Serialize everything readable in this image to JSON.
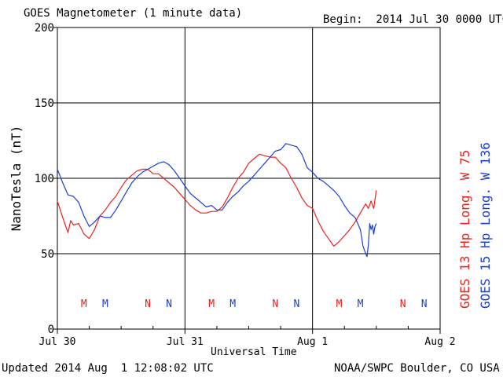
{
  "header": {
    "title": "GOES Magnetometer (1 minute data)",
    "begin": "Begin:  2014 Jul 30 0000 UTC"
  },
  "footer": {
    "updated": "Updated 2014 Aug  1 12:08:02 UTC",
    "credit": "NOAA/SWPC Boulder, CO USA"
  },
  "colors": {
    "goes13": "#e8231c",
    "goes15": "#1b3fd0",
    "grid": "#000000",
    "background": "#ffffff"
  },
  "chart_data": {
    "type": "line",
    "title": "GOES Magnetometer (1 minute data)",
    "xlabel": "Universal Time",
    "ylabel": "NanoTesla (nT)",
    "ylim": [
      0,
      200
    ],
    "yticks": [
      0,
      50,
      100,
      150,
      200
    ],
    "xlim": [
      "2014-07-30 00:00",
      "2014-08-02 00:00"
    ],
    "xticks": [
      {
        "x": "2014-07-30 00:00",
        "label": "Jul 30"
      },
      {
        "x": "2014-07-31 00:00",
        "label": "Jul 31"
      },
      {
        "x": "2014-08-01 00:00",
        "label": "Aug 1"
      },
      {
        "x": "2014-08-02 00:00",
        "label": "Aug 2"
      }
    ],
    "grid": true,
    "legend": "right side, vertical text",
    "series": [
      {
        "name": "GOES 13 Hp  Long. W 75",
        "color": "#e8231c",
        "points": [
          [
            "2014-07-30 00:00",
            85
          ],
          [
            "2014-07-30 01:00",
            74
          ],
          [
            "2014-07-30 01:30",
            69
          ],
          [
            "2014-07-30 02:00",
            64
          ],
          [
            "2014-07-30 02:30",
            72
          ],
          [
            "2014-07-30 03:00",
            69
          ],
          [
            "2014-07-30 04:00",
            70
          ],
          [
            "2014-07-30 05:00",
            63
          ],
          [
            "2014-07-30 06:00",
            60
          ],
          [
            "2014-07-30 07:00",
            66
          ],
          [
            "2014-07-30 08:00",
            75
          ],
          [
            "2014-07-30 09:00",
            79
          ],
          [
            "2014-07-30 10:00",
            84
          ],
          [
            "2014-07-30 11:00",
            88
          ],
          [
            "2014-07-30 12:00",
            94
          ],
          [
            "2014-07-30 13:00",
            99
          ],
          [
            "2014-07-30 14:00",
            102
          ],
          [
            "2014-07-30 15:00",
            105
          ],
          [
            "2014-07-30 16:00",
            106
          ],
          [
            "2014-07-30 17:00",
            106
          ],
          [
            "2014-07-30 18:00",
            103
          ],
          [
            "2014-07-30 19:00",
            103
          ],
          [
            "2014-07-30 20:00",
            100
          ],
          [
            "2014-07-30 21:00",
            97
          ],
          [
            "2014-07-30 22:00",
            94
          ],
          [
            "2014-07-30 23:00",
            90
          ],
          [
            "2014-07-31 00:00",
            86
          ],
          [
            "2014-07-31 01:00",
            82
          ],
          [
            "2014-07-31 02:00",
            79
          ],
          [
            "2014-07-31 03:00",
            77
          ],
          [
            "2014-07-31 04:00",
            77
          ],
          [
            "2014-07-31 05:00",
            78
          ],
          [
            "2014-07-31 06:00",
            78
          ],
          [
            "2014-07-31 07:00",
            81
          ],
          [
            "2014-07-31 08:00",
            87
          ],
          [
            "2014-07-31 09:00",
            94
          ],
          [
            "2014-07-31 10:00",
            100
          ],
          [
            "2014-07-31 11:00",
            104
          ],
          [
            "2014-07-31 12:00",
            110
          ],
          [
            "2014-07-31 13:00",
            113
          ],
          [
            "2014-07-31 14:00",
            116
          ],
          [
            "2014-07-31 15:00",
            115
          ],
          [
            "2014-07-31 16:00",
            114
          ],
          [
            "2014-07-31 17:00",
            114
          ],
          [
            "2014-07-31 18:00",
            110
          ],
          [
            "2014-07-31 19:00",
            107
          ],
          [
            "2014-07-31 20:00",
            100
          ],
          [
            "2014-07-31 21:00",
            94
          ],
          [
            "2014-07-31 22:00",
            87
          ],
          [
            "2014-07-31 23:00",
            82
          ],
          [
            "2014-08-01 00:00",
            80
          ],
          [
            "2014-08-01 01:00",
            72
          ],
          [
            "2014-08-01 02:00",
            65
          ],
          [
            "2014-08-01 03:00",
            60
          ],
          [
            "2014-08-01 04:00",
            55
          ],
          [
            "2014-08-01 05:00",
            58
          ],
          [
            "2014-08-01 06:00",
            62
          ],
          [
            "2014-08-01 07:00",
            66
          ],
          [
            "2014-08-01 08:00",
            71
          ],
          [
            "2014-08-01 09:00",
            77
          ],
          [
            "2014-08-01 10:00",
            83
          ],
          [
            "2014-08-01 10:30",
            80
          ],
          [
            "2014-08-01 11:00",
            85
          ],
          [
            "2014-08-01 11:30",
            80
          ],
          [
            "2014-08-01 11:45",
            86
          ],
          [
            "2014-08-01 12:00",
            92
          ]
        ]
      },
      {
        "name": "GOES 15 Hp  Long. W 136",
        "color": "#1b3fd0",
        "points": [
          [
            "2014-07-30 00:00",
            106
          ],
          [
            "2014-07-30 01:00",
            97
          ],
          [
            "2014-07-30 02:00",
            89
          ],
          [
            "2014-07-30 03:00",
            88
          ],
          [
            "2014-07-30 04:00",
            84
          ],
          [
            "2014-07-30 05:00",
            75
          ],
          [
            "2014-07-30 06:00",
            68
          ],
          [
            "2014-07-30 07:00",
            71
          ],
          [
            "2014-07-30 08:00",
            75
          ],
          [
            "2014-07-30 09:00",
            74
          ],
          [
            "2014-07-30 10:00",
            74
          ],
          [
            "2014-07-30 11:00",
            79
          ],
          [
            "2014-07-30 12:00",
            85
          ],
          [
            "2014-07-30 13:00",
            91
          ],
          [
            "2014-07-30 14:00",
            97
          ],
          [
            "2014-07-30 15:00",
            101
          ],
          [
            "2014-07-30 16:00",
            104
          ],
          [
            "2014-07-30 17:00",
            106
          ],
          [
            "2014-07-30 18:00",
            108
          ],
          [
            "2014-07-30 19:00",
            110
          ],
          [
            "2014-07-30 20:00",
            111
          ],
          [
            "2014-07-30 21:00",
            109
          ],
          [
            "2014-07-30 22:00",
            105
          ],
          [
            "2014-07-30 23:00",
            100
          ],
          [
            "2014-07-31 00:00",
            95
          ],
          [
            "2014-07-31 01:00",
            90
          ],
          [
            "2014-07-31 02:00",
            87
          ],
          [
            "2014-07-31 03:00",
            84
          ],
          [
            "2014-07-31 04:00",
            81
          ],
          [
            "2014-07-31 05:00",
            82
          ],
          [
            "2014-07-31 06:00",
            79
          ],
          [
            "2014-07-31 07:00",
            79
          ],
          [
            "2014-07-31 08:00",
            84
          ],
          [
            "2014-07-31 09:00",
            88
          ],
          [
            "2014-07-31 10:00",
            91
          ],
          [
            "2014-07-31 11:00",
            95
          ],
          [
            "2014-07-31 12:00",
            98
          ],
          [
            "2014-07-31 13:00",
            102
          ],
          [
            "2014-07-31 14:00",
            106
          ],
          [
            "2014-07-31 15:00",
            110
          ],
          [
            "2014-07-31 16:00",
            114
          ],
          [
            "2014-07-31 17:00",
            118
          ],
          [
            "2014-07-31 18:00",
            119
          ],
          [
            "2014-07-31 19:00",
            123
          ],
          [
            "2014-07-31 20:00",
            122
          ],
          [
            "2014-07-31 21:00",
            121
          ],
          [
            "2014-07-31 22:00",
            116
          ],
          [
            "2014-07-31 23:00",
            107
          ],
          [
            "2014-08-01 00:00",
            104
          ],
          [
            "2014-08-01 01:00",
            100
          ],
          [
            "2014-08-01 02:00",
            98
          ],
          [
            "2014-08-01 03:00",
            95
          ],
          [
            "2014-08-01 04:00",
            92
          ],
          [
            "2014-08-01 05:00",
            88
          ],
          [
            "2014-08-01 06:00",
            82
          ],
          [
            "2014-08-01 07:00",
            77
          ],
          [
            "2014-08-01 08:00",
            74
          ],
          [
            "2014-08-01 08:30",
            70
          ],
          [
            "2014-08-01 09:00",
            66
          ],
          [
            "2014-08-01 09:30",
            55
          ],
          [
            "2014-08-01 10:00",
            50
          ],
          [
            "2014-08-01 10:15",
            48
          ],
          [
            "2014-08-01 10:30",
            56
          ],
          [
            "2014-08-01 10:45",
            70
          ],
          [
            "2014-08-01 11:00",
            66
          ],
          [
            "2014-08-01 11:15",
            69
          ],
          [
            "2014-08-01 11:30",
            63
          ],
          [
            "2014-08-01 11:45",
            68
          ],
          [
            "2014-08-01 12:00",
            70
          ]
        ]
      }
    ],
    "markers": [
      {
        "label": "M",
        "series": "GOES 13 Hp  Long. W 75",
        "x": "2014-07-30 05:00"
      },
      {
        "label": "M",
        "series": "GOES 15 Hp  Long. W 136",
        "x": "2014-07-30 09:00"
      },
      {
        "label": "N",
        "series": "GOES 13 Hp  Long. W 75",
        "x": "2014-07-30 17:00"
      },
      {
        "label": "N",
        "series": "GOES 15 Hp  Long. W 136",
        "x": "2014-07-30 21:00"
      },
      {
        "label": "M",
        "series": "GOES 13 Hp  Long. W 75",
        "x": "2014-07-31 05:00"
      },
      {
        "label": "M",
        "series": "GOES 15 Hp  Long. W 136",
        "x": "2014-07-31 09:00"
      },
      {
        "label": "N",
        "series": "GOES 13 Hp  Long. W 75",
        "x": "2014-07-31 17:00"
      },
      {
        "label": "N",
        "series": "GOES 15 Hp  Long. W 136",
        "x": "2014-07-31 21:00"
      },
      {
        "label": "M",
        "series": "GOES 13 Hp  Long. W 75",
        "x": "2014-08-01 05:00"
      },
      {
        "label": "M",
        "series": "GOES 15 Hp  Long. W 136",
        "x": "2014-08-01 09:00"
      },
      {
        "label": "N",
        "series": "GOES 13 Hp  Long. W 75",
        "x": "2014-08-01 17:00"
      },
      {
        "label": "N",
        "series": "GOES 15 Hp  Long. W 136",
        "x": "2014-08-01 21:00"
      }
    ]
  }
}
